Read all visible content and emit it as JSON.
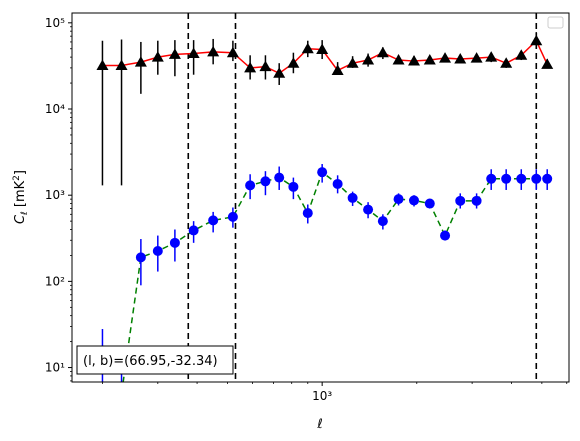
{
  "chart_data": {
    "type": "scatter",
    "title": "",
    "xlabel": "ℓ",
    "ylabel": "C_ℓ  [mK²]",
    "xscale": "log",
    "yscale": "log",
    "xlim": [
      160,
      6100
    ],
    "ylim": [
      6.8,
      130000
    ],
    "x_ticks": [
      {
        "value": 1000,
        "label": "10³"
      }
    ],
    "y_ticks": [
      {
        "value": 10,
        "label": "10¹"
      },
      {
        "value": 100,
        "label": "10²"
      },
      {
        "value": 1000,
        "label": "10³"
      },
      {
        "value": 10000,
        "label": "10⁴"
      },
      {
        "value": 100000,
        "label": "10⁵"
      }
    ],
    "legend": "top-right (empty)",
    "annotation": "(l, b)=(66.95,-32.34)",
    "vlines": [
      375,
      530,
      4800
    ],
    "series": [
      {
        "name": "",
        "marker": "triangle",
        "marker_color": "#000000",
        "line_color": "#ff0000",
        "line_style": "solid",
        "errorbar_color": "#000000",
        "x": [
          200,
          230,
          265,
          300,
          340,
          390,
          450,
          520,
          590,
          660,
          730,
          810,
          900,
          1000,
          1120,
          1250,
          1400,
          1560,
          1750,
          1960,
          2200,
          2460,
          2750,
          3100,
          3450,
          3850,
          4300,
          4800,
          5200
        ],
        "y": [
          32000,
          32000,
          35000,
          40000,
          43000,
          44000,
          46000,
          45000,
          30000,
          31000,
          26000,
          34000,
          50000,
          49000,
          28000,
          34000,
          37000,
          45000,
          37000,
          36000,
          37000,
          39000,
          38000,
          39000,
          40000,
          34000,
          42000,
          62000,
          33000
        ],
        "y_low": [
          1300,
          1300,
          15000,
          25000,
          24000,
          25000,
          33000,
          36000,
          22000,
          22000,
          19000,
          26000,
          40000,
          38000,
          25000,
          30000,
          31000,
          38000,
          33000,
          32000,
          34000,
          35000,
          34000,
          35000,
          35000,
          30000,
          37000,
          50000,
          30000
        ],
        "y_high": [
          62000,
          64000,
          60000,
          62000,
          63000,
          63000,
          65000,
          62000,
          42000,
          42000,
          34000,
          45000,
          62000,
          63000,
          35000,
          41000,
          44000,
          52000,
          42000,
          41000,
          41000,
          43000,
          42000,
          43000,
          45000,
          38000,
          47000,
          78000,
          38000
        ]
      },
      {
        "name": "",
        "marker": "circle",
        "marker_color": "#0000ff",
        "line_color": "#008000",
        "line_style": "dashed",
        "errorbar_color": "#0000ff",
        "x": [
          200,
          230,
          265,
          300,
          340,
          390,
          450,
          520,
          590,
          660,
          730,
          810,
          900,
          1000,
          1120,
          1250,
          1400,
          1560,
          1750,
          1960,
          2200,
          2460,
          2750,
          3100,
          3450,
          3850,
          4300,
          4800,
          5200
        ],
        "y": [
          5,
          5,
          190,
          225,
          280,
          390,
          510,
          560,
          1300,
          1450,
          1600,
          1250,
          620,
          1850,
          1350,
          930,
          680,
          500,
          900,
          870,
          800,
          340,
          860,
          860,
          1550,
          1550,
          1550,
          1550,
          1550
        ],
        "y_low": [
          3,
          3,
          90,
          130,
          170,
          280,
          370,
          420,
          900,
          1000,
          1150,
          900,
          470,
          1400,
          1050,
          750,
          540,
          400,
          760,
          740,
          700,
          300,
          700,
          700,
          1150,
          1150,
          1150,
          1150,
          1150
        ],
        "y_high": [
          28,
          10,
          310,
          340,
          400,
          500,
          640,
          720,
          1750,
          1900,
          2150,
          1600,
          780,
          2300,
          1700,
          1100,
          830,
          600,
          1050,
          1000,
          900,
          390,
          1050,
          1050,
          2000,
          2000,
          2000,
          2000,
          2000
        ]
      }
    ]
  }
}
